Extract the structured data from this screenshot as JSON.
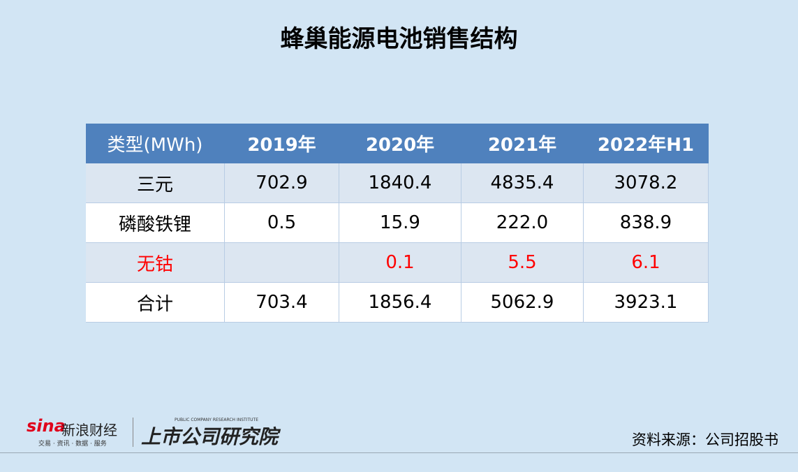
{
  "header": {
    "title": "蜂巢能源电池销售结构"
  },
  "table": {
    "columns": [
      "类型(MWh)",
      "2019年",
      "2020年",
      "2021年",
      "2022年H1"
    ],
    "rows": [
      [
        "三元",
        "702.9",
        "1840.4",
        "4835.4",
        "3078.2"
      ],
      [
        "磷酸铁锂",
        "0.5",
        "15.9",
        "222.0",
        "838.9"
      ],
      [
        "无钴",
        null,
        "0.1",
        "5.5",
        "6.1"
      ],
      [
        "合计",
        "703.4",
        "1856.4",
        "5062.9",
        "3923.1"
      ]
    ],
    "highlight_row": 2,
    "highlight_color": "#ff0000"
  },
  "footer": {
    "logo_sina": "sina",
    "logo_sina_name": "新浪财经",
    "logo_sina_tagline": "交易 · 资讯 · 数据 · 服务",
    "logo_institute_en": "PUBLIC COMPANY RESEARCH INSTITUTE",
    "logo_institute": "上市公司研究院",
    "source": "资料来源：公司招股书"
  }
}
